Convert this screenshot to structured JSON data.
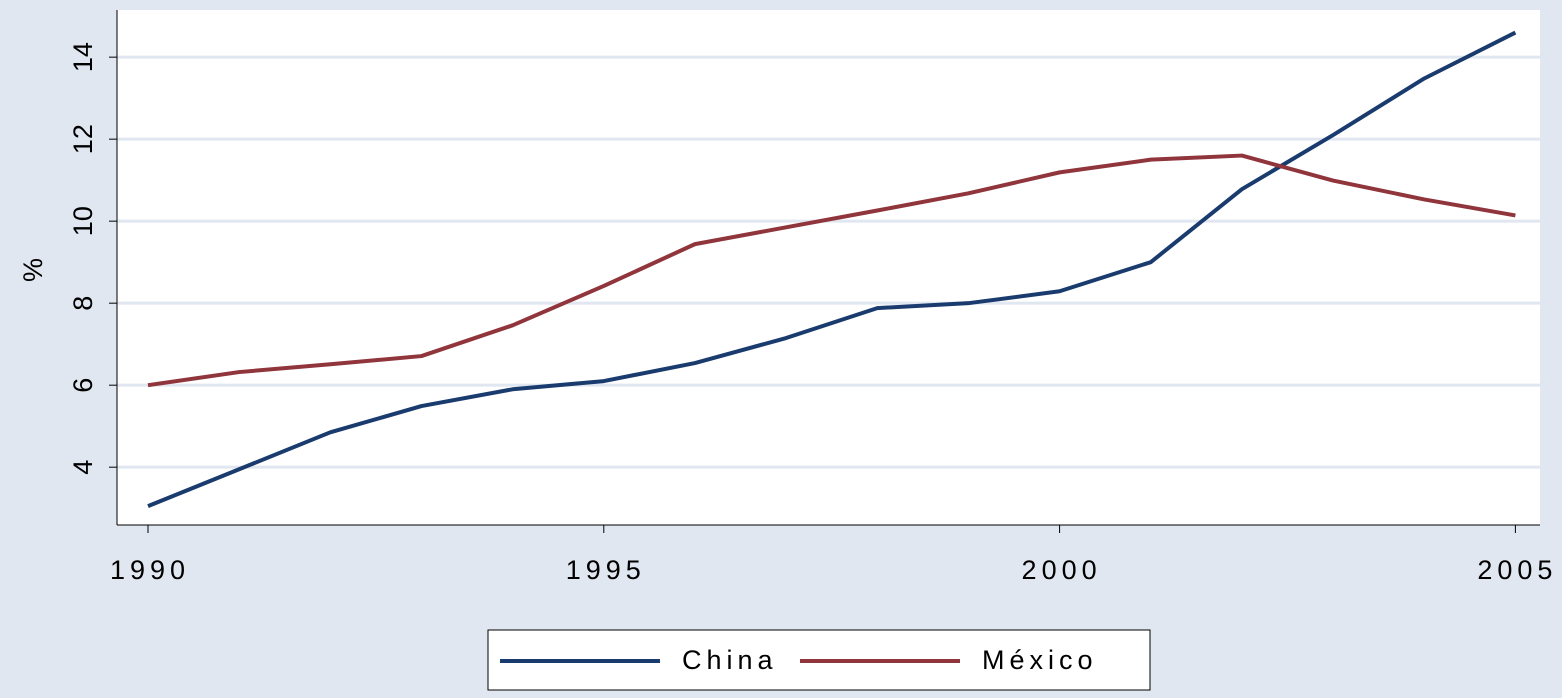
{
  "chart_data": {
    "type": "line",
    "y_label": "%",
    "x": [
      1990,
      1991,
      1992,
      1993,
      1994,
      1995,
      1996,
      1997,
      1998,
      1999,
      2000,
      2001,
      2002,
      2003,
      2004,
      2005
    ],
    "series": [
      {
        "name": "China",
        "color": "#1a3b6e",
        "values": [
          3.05,
          3.95,
          4.85,
          5.49,
          5.9,
          6.1,
          6.54,
          7.15,
          7.88,
          8.0,
          8.29,
          9.0,
          10.78,
          12.1,
          13.48,
          14.6
        ]
      },
      {
        "name": "México",
        "color": "#90353b",
        "values": [
          6.0,
          6.32,
          6.51,
          6.71,
          7.46,
          8.42,
          9.44,
          9.85,
          10.26,
          10.68,
          11.19,
          11.5,
          11.6,
          10.99,
          10.53,
          10.14
        ]
      }
    ],
    "xlim": [
      1989.66,
      2005.27
    ],
    "xticks": [
      1990,
      1995,
      2000,
      2005
    ],
    "ylim": [
      2.59,
      15.15
    ],
    "yticks": [
      4,
      6,
      8,
      10,
      12,
      14
    ],
    "grid": true,
    "legend": "bottom"
  }
}
